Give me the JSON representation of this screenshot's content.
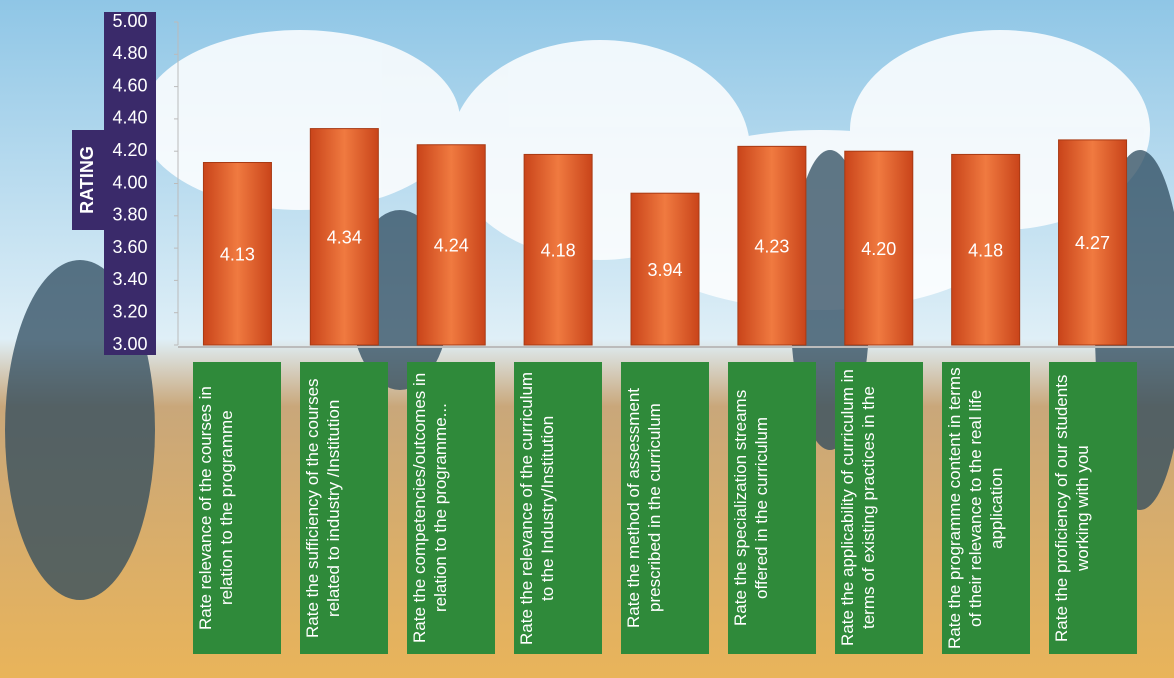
{
  "chart_data": {
    "type": "bar",
    "y_label": "RATING",
    "categories": [
      "Rate relevance of the courses in relation to the programme",
      "Rate the sufficiency of the courses related to industry /Institution",
      "Rate the competencies/outcomes in relation to the programme...",
      "Rate the relevance of the curriculum to the Industry/Institution",
      "Rate the method of assessment prescribed in the curriculum",
      "Rate the specialization streams offered in the curriculum",
      "Rate the applicability of curriculum in terms of existing practices in the",
      "Rate the programme content in terms of their relevance to the real life application",
      "Rate the proficiency of our students working with you"
    ],
    "values": [
      4.13,
      4.34,
      4.24,
      4.18,
      3.94,
      4.23,
      4.2,
      4.18,
      4.27
    ],
    "value_labels": [
      "4.13",
      "4.34",
      "4.24",
      "4.18",
      "3.94",
      "4.23",
      "4.20",
      "4.18",
      "4.27"
    ],
    "color": "#e35a24",
    "ylim": [
      3,
      5
    ],
    "yticks": [
      {
        "value": 3,
        "label": "3.00"
      },
      {
        "value": 3.2,
        "label": "3.20"
      },
      {
        "value": 3.4,
        "label": "3.40"
      },
      {
        "value": 3.6,
        "label": "3.60"
      },
      {
        "value": 3.8,
        "label": "3.80"
      },
      {
        "value": 4,
        "label": "4.00"
      },
      {
        "value": 4.2,
        "label": "4.20"
      },
      {
        "value": 4.4,
        "label": "4.40"
      },
      {
        "value": 4.6,
        "label": "4.60"
      },
      {
        "value": 4.8,
        "label": "4.80"
      },
      {
        "value": 5,
        "label": "5.00"
      }
    ]
  }
}
